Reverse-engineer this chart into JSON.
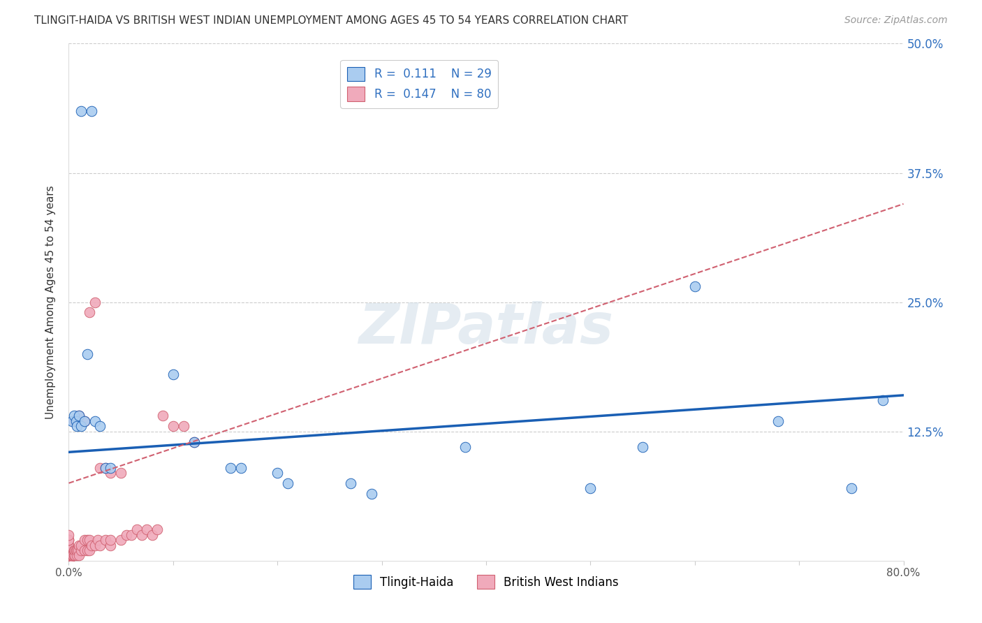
{
  "title": "TLINGIT-HAIDA VS BRITISH WEST INDIAN UNEMPLOYMENT AMONG AGES 45 TO 54 YEARS CORRELATION CHART",
  "source": "Source: ZipAtlas.com",
  "ylabel": "Unemployment Among Ages 45 to 54 years",
  "xlim": [
    0,
    0.8
  ],
  "ylim": [
    0,
    0.5
  ],
  "yticks": [
    0.0,
    0.125,
    0.25,
    0.375,
    0.5
  ],
  "tlingit_x": [
    0.012,
    0.022,
    0.003,
    0.005,
    0.007,
    0.008,
    0.01,
    0.012,
    0.015,
    0.018,
    0.025,
    0.03,
    0.035,
    0.04,
    0.1,
    0.12,
    0.155,
    0.165,
    0.2,
    0.21,
    0.27,
    0.29,
    0.38,
    0.5,
    0.55,
    0.6,
    0.68,
    0.75,
    0.78
  ],
  "tlingit_y": [
    0.435,
    0.435,
    0.135,
    0.14,
    0.135,
    0.13,
    0.14,
    0.13,
    0.135,
    0.2,
    0.135,
    0.13,
    0.09,
    0.09,
    0.18,
    0.115,
    0.09,
    0.09,
    0.085,
    0.075,
    0.075,
    0.065,
    0.11,
    0.07,
    0.11,
    0.265,
    0.135,
    0.07,
    0.155
  ],
  "bwi_x": [
    0.0,
    0.0,
    0.0,
    0.0,
    0.0,
    0.0,
    0.0,
    0.0,
    0.0,
    0.0,
    0.0,
    0.0,
    0.0,
    0.0,
    0.0,
    0.0,
    0.0,
    0.0,
    0.0,
    0.0,
    0.0,
    0.0,
    0.0,
    0.0,
    0.0,
    0.0,
    0.0,
    0.0,
    0.0,
    0.0,
    0.003,
    0.003,
    0.004,
    0.005,
    0.005,
    0.006,
    0.006,
    0.007,
    0.008,
    0.008,
    0.009,
    0.01,
    0.01,
    0.012,
    0.012,
    0.015,
    0.015,
    0.018,
    0.018,
    0.02,
    0.02,
    0.022,
    0.025,
    0.028,
    0.03,
    0.035,
    0.04,
    0.04,
    0.05,
    0.055,
    0.06,
    0.065,
    0.07,
    0.075,
    0.08,
    0.085,
    0.09,
    0.1,
    0.11,
    0.12,
    0.005,
    0.008,
    0.01,
    0.015,
    0.02,
    0.025,
    0.03,
    0.035,
    0.04,
    0.05
  ],
  "bwi_y": [
    0.0,
    0.0,
    0.0,
    0.0,
    0.0,
    0.0,
    0.0,
    0.0,
    0.0,
    0.0,
    0.005,
    0.005,
    0.005,
    0.005,
    0.005,
    0.005,
    0.005,
    0.005,
    0.01,
    0.01,
    0.01,
    0.01,
    0.01,
    0.015,
    0.015,
    0.015,
    0.02,
    0.02,
    0.02,
    0.025,
    0.005,
    0.005,
    0.005,
    0.005,
    0.01,
    0.005,
    0.01,
    0.01,
    0.005,
    0.01,
    0.01,
    0.005,
    0.015,
    0.01,
    0.015,
    0.01,
    0.02,
    0.01,
    0.02,
    0.01,
    0.02,
    0.015,
    0.015,
    0.02,
    0.015,
    0.02,
    0.015,
    0.02,
    0.02,
    0.025,
    0.025,
    0.03,
    0.025,
    0.03,
    0.025,
    0.03,
    0.14,
    0.13,
    0.13,
    0.115,
    0.135,
    0.135,
    0.14,
    0.135,
    0.24,
    0.25,
    0.09,
    0.09,
    0.085,
    0.085
  ],
  "tlingit_color": "#aaccf0",
  "bwi_color": "#f0aabb",
  "tlingit_line_color": "#1a5fb4",
  "bwi_line_color": "#d06070",
  "tlingit_trend_x0": 0.0,
  "tlingit_trend_y0": 0.105,
  "tlingit_trend_x1": 0.8,
  "tlingit_trend_y1": 0.16,
  "bwi_trend_x0": 0.0,
  "bwi_trend_y0": 0.075,
  "bwi_trend_x1": 0.8,
  "bwi_trend_y1": 0.345,
  "R_tlingit": 0.111,
  "N_tlingit": 29,
  "R_bwi": 0.147,
  "N_bwi": 80,
  "legend_labels": [
    "Tlingit-Haida",
    "British West Indians"
  ],
  "marker_size": 110
}
